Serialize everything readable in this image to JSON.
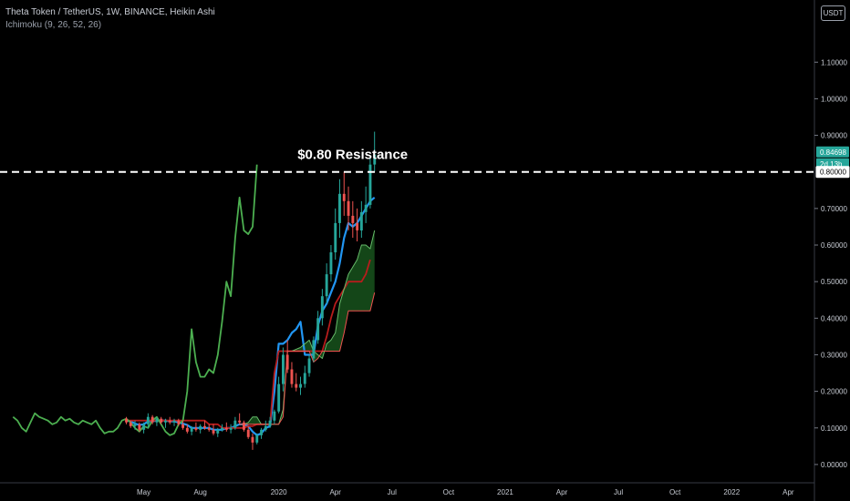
{
  "header": {
    "title": "Theta Token / TetherUS, 1W, BINANCE, Heikin Ashi",
    "indicator": "Ichimoku (9, 26, 52, 26)",
    "currency": "USDT"
  },
  "colors": {
    "up": "#26a69a",
    "down": "#ef5350",
    "conversion": "#2196f3",
    "base": "#b71c1c",
    "lagging": "#4caf50",
    "cloud_fill": "#1b5e20",
    "lead_a": "#66bb6a",
    "lead_b": "#ef5350",
    "resistance": "#ffffff"
  },
  "chart_data": {
    "type": "candlestick",
    "title": "Theta Token / TetherUS, 1W, BINANCE, Heikin Ashi",
    "y_axis": {
      "min": -0.05,
      "max": 1.27,
      "ticks": [
        "0.00000",
        "0.10000",
        "0.20000",
        "0.30000",
        "0.40000",
        "0.50000",
        "0.60000",
        "0.70000",
        "0.90000",
        "1.00000",
        "1.10000"
      ],
      "tick_values": [
        0.0,
        0.1,
        0.2,
        0.3,
        0.4,
        0.5,
        0.6,
        0.7,
        0.9,
        1.0,
        1.1
      ]
    },
    "x_axis": {
      "labels": [
        "May",
        "Aug",
        "2020",
        "Apr",
        "Jul",
        "Oct",
        "2021",
        "Apr",
        "Jul",
        "Oct",
        "2022",
        "Apr"
      ],
      "label_positions": [
        4,
        17,
        35,
        48,
        61,
        74,
        87,
        100,
        113,
        126,
        139,
        152
      ],
      "first_candle_index": 0,
      "index_range": [
        -29,
        158
      ]
    },
    "price_tags": [
      {
        "value": 0.84698,
        "label": "0.84698",
        "style": "current"
      },
      {
        "value": 0.82,
        "label": "2d 13h",
        "style": "countdown"
      },
      {
        "value": 0.8,
        "label": "0.80000",
        "style": "level"
      }
    ],
    "resistance": {
      "value": 0.8,
      "label": "$0.80 Resistance"
    },
    "candles": [
      [
        0.125,
        0.13,
        0.11,
        0.115
      ],
      [
        0.115,
        0.12,
        0.1,
        0.105
      ],
      [
        0.105,
        0.12,
        0.095,
        0.11
      ],
      [
        0.11,
        0.115,
        0.09,
        0.095
      ],
      [
        0.095,
        0.115,
        0.085,
        0.11
      ],
      [
        0.11,
        0.14,
        0.1,
        0.13
      ],
      [
        0.13,
        0.135,
        0.11,
        0.115
      ],
      [
        0.115,
        0.13,
        0.105,
        0.125
      ],
      [
        0.125,
        0.13,
        0.11,
        0.115
      ],
      [
        0.115,
        0.125,
        0.1,
        0.12
      ],
      [
        0.12,
        0.13,
        0.11,
        0.115
      ],
      [
        0.115,
        0.125,
        0.105,
        0.12
      ],
      [
        0.12,
        0.125,
        0.105,
        0.11
      ],
      [
        0.11,
        0.12,
        0.095,
        0.1
      ],
      [
        0.1,
        0.11,
        0.085,
        0.09
      ],
      [
        0.09,
        0.105,
        0.08,
        0.1
      ],
      [
        0.1,
        0.115,
        0.09,
        0.095
      ],
      [
        0.095,
        0.11,
        0.085,
        0.105
      ],
      [
        0.105,
        0.12,
        0.095,
        0.1
      ],
      [
        0.1,
        0.11,
        0.09,
        0.095
      ],
      [
        0.095,
        0.11,
        0.08,
        0.085
      ],
      [
        0.085,
        0.1,
        0.075,
        0.095
      ],
      [
        0.095,
        0.11,
        0.09,
        0.1
      ],
      [
        0.1,
        0.115,
        0.09,
        0.095
      ],
      [
        0.095,
        0.11,
        0.085,
        0.1
      ],
      [
        0.1,
        0.13,
        0.095,
        0.12
      ],
      [
        0.12,
        0.14,
        0.11,
        0.115
      ],
      [
        0.115,
        0.12,
        0.09,
        0.095
      ],
      [
        0.095,
        0.105,
        0.07,
        0.075
      ],
      [
        0.075,
        0.085,
        0.04,
        0.06
      ],
      [
        0.06,
        0.085,
        0.055,
        0.08
      ],
      [
        0.08,
        0.1,
        0.07,
        0.095
      ],
      [
        0.095,
        0.12,
        0.09,
        0.105
      ],
      [
        0.105,
        0.13,
        0.1,
        0.12
      ],
      [
        0.12,
        0.15,
        0.11,
        0.145
      ],
      [
        0.145,
        0.24,
        0.14,
        0.22
      ],
      [
        0.22,
        0.32,
        0.2,
        0.3
      ],
      [
        0.3,
        0.34,
        0.25,
        0.26
      ],
      [
        0.26,
        0.28,
        0.21,
        0.22
      ],
      [
        0.22,
        0.25,
        0.2,
        0.21
      ],
      [
        0.21,
        0.24,
        0.19,
        0.22
      ],
      [
        0.22,
        0.27,
        0.21,
        0.25
      ],
      [
        0.25,
        0.3,
        0.24,
        0.29
      ],
      [
        0.29,
        0.35,
        0.28,
        0.34
      ],
      [
        0.34,
        0.42,
        0.33,
        0.4
      ],
      [
        0.4,
        0.48,
        0.38,
        0.46
      ],
      [
        0.46,
        0.55,
        0.44,
        0.52
      ],
      [
        0.52,
        0.6,
        0.5,
        0.58
      ],
      [
        0.58,
        0.7,
        0.56,
        0.66
      ],
      [
        0.66,
        0.78,
        0.62,
        0.74
      ],
      [
        0.74,
        0.8,
        0.68,
        0.72
      ],
      [
        0.72,
        0.76,
        0.64,
        0.68
      ],
      [
        0.68,
        0.72,
        0.62,
        0.66
      ],
      [
        0.66,
        0.7,
        0.61,
        0.64
      ],
      [
        0.64,
        0.72,
        0.62,
        0.69
      ],
      [
        0.69,
        0.76,
        0.66,
        0.71
      ],
      [
        0.71,
        0.84,
        0.7,
        0.82
      ],
      [
        0.82,
        0.91,
        0.8,
        0.847
      ]
    ],
    "candles_start_index": 0,
    "series": [
      {
        "name": "Conversion Line",
        "color": "#2196f3",
        "start": 0,
        "values": [
          0.12,
          0.118,
          0.112,
          0.108,
          0.11,
          0.118,
          0.118,
          0.12,
          0.12,
          0.12,
          0.118,
          0.118,
          0.115,
          0.112,
          0.108,
          0.1,
          0.1,
          0.1,
          0.1,
          0.1,
          0.095,
          0.095,
          0.095,
          0.1,
          0.1,
          0.105,
          0.11,
          0.11,
          0.105,
          0.09,
          0.08,
          0.085,
          0.1,
          0.105,
          0.2,
          0.33,
          0.33,
          0.34,
          0.36,
          0.37,
          0.39,
          0.3,
          0.3,
          0.3,
          0.38,
          0.42,
          0.44,
          0.47,
          0.5,
          0.55,
          0.62,
          0.66,
          0.65,
          0.66,
          0.68,
          0.7,
          0.72,
          0.73
        ]
      },
      {
        "name": "Base Line",
        "color": "#b71c1c",
        "start": 0,
        "values": [
          0.12,
          0.12,
          0.12,
          0.12,
          0.12,
          0.12,
          0.12,
          0.12,
          0.12,
          0.12,
          0.12,
          0.12,
          0.12,
          0.12,
          0.12,
          0.12,
          0.12,
          0.12,
          0.12,
          0.11,
          0.11,
          0.11,
          0.1,
          0.1,
          0.1,
          0.1,
          0.1,
          0.1,
          0.105,
          0.105,
          0.11,
          0.11,
          0.11,
          0.11,
          0.25,
          0.31,
          0.31,
          0.31,
          0.31,
          0.31,
          0.31,
          0.31,
          0.31,
          0.31,
          0.31,
          0.31,
          0.35,
          0.4,
          0.44,
          0.46,
          0.48,
          0.5,
          0.5,
          0.5,
          0.5,
          0.52,
          0.56
        ]
      },
      {
        "name": "Lagging Span",
        "color": "#4caf50",
        "start": -26,
        "values": [
          0.13,
          0.12,
          0.1,
          0.09,
          0.115,
          0.14,
          0.13,
          0.125,
          0.12,
          0.11,
          0.115,
          0.13,
          0.12,
          0.125,
          0.115,
          0.11,
          0.12,
          0.115,
          0.11,
          0.12,
          0.1,
          0.085,
          0.09,
          0.09,
          0.1,
          0.12,
          0.125,
          0.115,
          0.1,
          0.09,
          0.105,
          0.1,
          0.12,
          0.13,
          0.11,
          0.09,
          0.08,
          0.085,
          0.11,
          0.12,
          0.2,
          0.37,
          0.28,
          0.24,
          0.24,
          0.26,
          0.25,
          0.3,
          0.39,
          0.5,
          0.46,
          0.62,
          0.73,
          0.64,
          0.63,
          0.65,
          0.82
        ]
      },
      {
        "name": "Leading Span A",
        "color": "#66bb6a",
        "start": 26,
        "values": [
          0.11,
          0.11,
          0.115,
          0.13,
          0.13,
          0.11,
          0.11,
          0.11,
          0.11,
          0.11,
          0.15,
          0.31,
          0.31,
          0.315,
          0.32,
          0.33,
          0.34,
          0.31,
          0.3,
          0.29,
          0.33,
          0.34,
          0.36,
          0.44,
          0.48,
          0.52,
          0.54,
          0.56,
          0.6,
          0.6,
          0.59,
          0.64
        ]
      },
      {
        "name": "Leading Span B",
        "color": "#ef5350",
        "start": 26,
        "values": [
          0.11,
          0.11,
          0.11,
          0.11,
          0.11,
          0.11,
          0.11,
          0.11,
          0.11,
          0.11,
          0.13,
          0.31,
          0.31,
          0.31,
          0.31,
          0.31,
          0.31,
          0.28,
          0.29,
          0.31,
          0.31,
          0.31,
          0.31,
          0.31,
          0.36,
          0.42,
          0.42,
          0.42,
          0.42,
          0.42,
          0.42,
          0.47
        ]
      }
    ]
  }
}
